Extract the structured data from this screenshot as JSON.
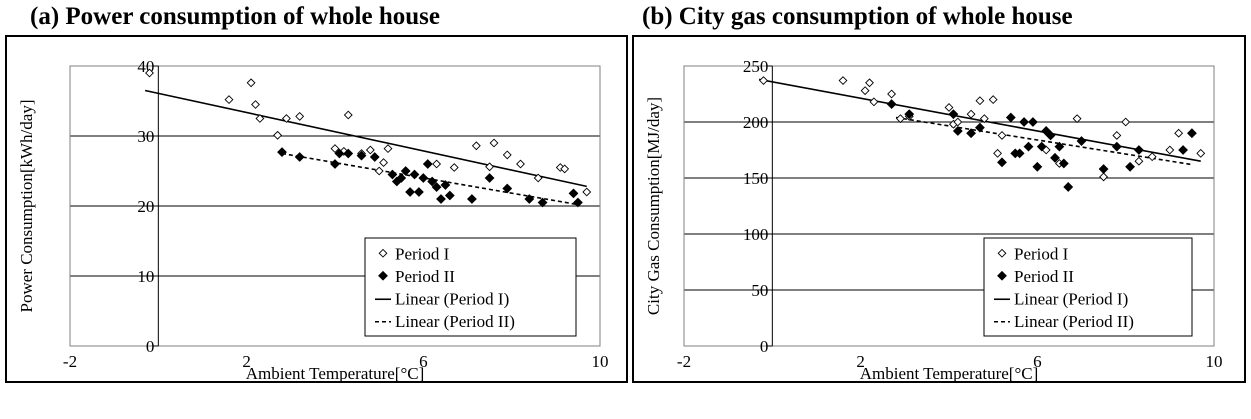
{
  "chart_data": [
    {
      "type": "scatter",
      "title": "(a) Power consumption of whole house",
      "xlabel": "Ambient Temperature[°C]",
      "ylabel": "Power Consumption[kWh/day]",
      "xlim": [
        -2,
        10
      ],
      "ylim": [
        0,
        40
      ],
      "xticks": [
        "-2",
        "2",
        "6",
        "10"
      ],
      "xtick_values": [
        -2,
        2,
        6,
        10
      ],
      "yticks": [
        "0",
        "10",
        "20",
        "30",
        "40"
      ],
      "ytick_values": [
        0,
        10,
        20,
        30,
        40
      ],
      "grid": "horizontal",
      "legend_position": "bottom-right",
      "series": [
        {
          "name": "Period I",
          "marker": "open-diamond",
          "x": [
            -0.2,
            1.6,
            2.1,
            2.2,
            2.3,
            2.7,
            2.9,
            3.2,
            4.0,
            4.2,
            4.3,
            4.6,
            4.8,
            5.0,
            5.1,
            5.2,
            6.3,
            6.7,
            7.2,
            7.5,
            7.6,
            7.9,
            8.2,
            8.6,
            9.1,
            9.2,
            9.7
          ],
          "y": [
            39,
            35.2,
            37.6,
            34.5,
            32.5,
            30.1,
            32.5,
            32.8,
            28.2,
            27.8,
            33.0,
            27.5,
            28.0,
            25.0,
            26.2,
            28.2,
            26.0,
            25.5,
            28.6,
            25.6,
            29.0,
            27.3,
            26.0,
            24.0,
            25.5,
            25.3,
            22.0
          ]
        },
        {
          "name": "Period II",
          "marker": "filled-diamond",
          "x": [
            2.8,
            3.2,
            4.0,
            4.1,
            4.3,
            4.6,
            4.9,
            5.3,
            5.4,
            5.5,
            5.6,
            5.7,
            5.8,
            5.9,
            6.0,
            6.1,
            6.2,
            6.3,
            6.4,
            6.5,
            6.6,
            7.1,
            7.5,
            7.9,
            8.4,
            8.7,
            9.4,
            9.5
          ],
          "y": [
            27.7,
            27.0,
            26.0,
            27.5,
            27.5,
            27.2,
            27.0,
            24.5,
            23.5,
            24.0,
            25.0,
            22.0,
            24.5,
            22.0,
            24.0,
            26.0,
            23.5,
            22.7,
            21.0,
            23.0,
            21.5,
            21.0,
            24.0,
            22.5,
            21.0,
            20.5,
            21.8,
            20.5
          ]
        },
        {
          "name": "Linear (Period I)",
          "type": "line",
          "dash": "solid",
          "x": [
            -0.3,
            9.7
          ],
          "y": [
            36.5,
            22.8
          ]
        },
        {
          "name": "Linear (Period II)",
          "type": "line",
          "dash": "dashed",
          "x": [
            2.8,
            9.5
          ],
          "y": [
            27.5,
            20.2
          ]
        }
      ]
    },
    {
      "type": "scatter",
      "title": "(b) City gas consumption of whole house",
      "xlabel": "Ambient Temperature[°C]",
      "ylabel": "City Gas Consumption[MJ/day]",
      "xlim": [
        -2,
        10
      ],
      "ylim": [
        0,
        250
      ],
      "xticks": [
        "-2",
        "2",
        "6",
        "10"
      ],
      "xtick_values": [
        -2,
        2,
        6,
        10
      ],
      "yticks": [
        "0",
        "50",
        "100",
        "150",
        "200",
        "250"
      ],
      "ytick_values": [
        0,
        50,
        100,
        150,
        200,
        250
      ],
      "grid": "horizontal",
      "legend_position": "bottom-right",
      "series": [
        {
          "name": "Period I",
          "marker": "open-diamond",
          "x": [
            -0.2,
            1.6,
            2.1,
            2.2,
            2.3,
            2.7,
            2.9,
            3.1,
            4.0,
            4.1,
            4.2,
            4.5,
            4.7,
            4.8,
            5.0,
            5.1,
            5.2,
            6.2,
            6.5,
            6.9,
            7.5,
            7.8,
            8.0,
            8.3,
            8.6,
            9.0,
            9.2,
            9.7
          ],
          "y": [
            237,
            237,
            228,
            235,
            218,
            225,
            203,
            205,
            213,
            198,
            200,
            207,
            219,
            203,
            220,
            172,
            188,
            175,
            163,
            203,
            151,
            188,
            200,
            165,
            169,
            175,
            190,
            172
          ]
        },
        {
          "name": "Period II",
          "marker": "filled-diamond",
          "x": [
            2.7,
            3.1,
            4.1,
            4.2,
            4.5,
            4.7,
            5.2,
            5.4,
            5.5,
            5.6,
            5.7,
            5.8,
            5.9,
            6.0,
            6.1,
            6.2,
            6.3,
            6.4,
            6.5,
            6.6,
            6.7,
            7.0,
            7.5,
            7.8,
            8.1,
            8.3,
            9.3,
            9.5
          ],
          "y": [
            216,
            207,
            207,
            192,
            190,
            195,
            164,
            204,
            172,
            172,
            200,
            178,
            200,
            160,
            178,
            192,
            188,
            168,
            178,
            163,
            142,
            183,
            158,
            178,
            160,
            175,
            175,
            190
          ]
        },
        {
          "name": "Linear (Period I)",
          "type": "line",
          "dash": "solid",
          "x": [
            -0.3,
            9.7
          ],
          "y": [
            238,
            165
          ]
        },
        {
          "name": "Linear (Period II)",
          "type": "line",
          "dash": "dashed",
          "x": [
            2.8,
            9.5
          ],
          "y": [
            204,
            162
          ]
        }
      ]
    }
  ],
  "colors": {
    "ink": "#000000",
    "background": "#ffffff",
    "grid": "#000000"
  }
}
